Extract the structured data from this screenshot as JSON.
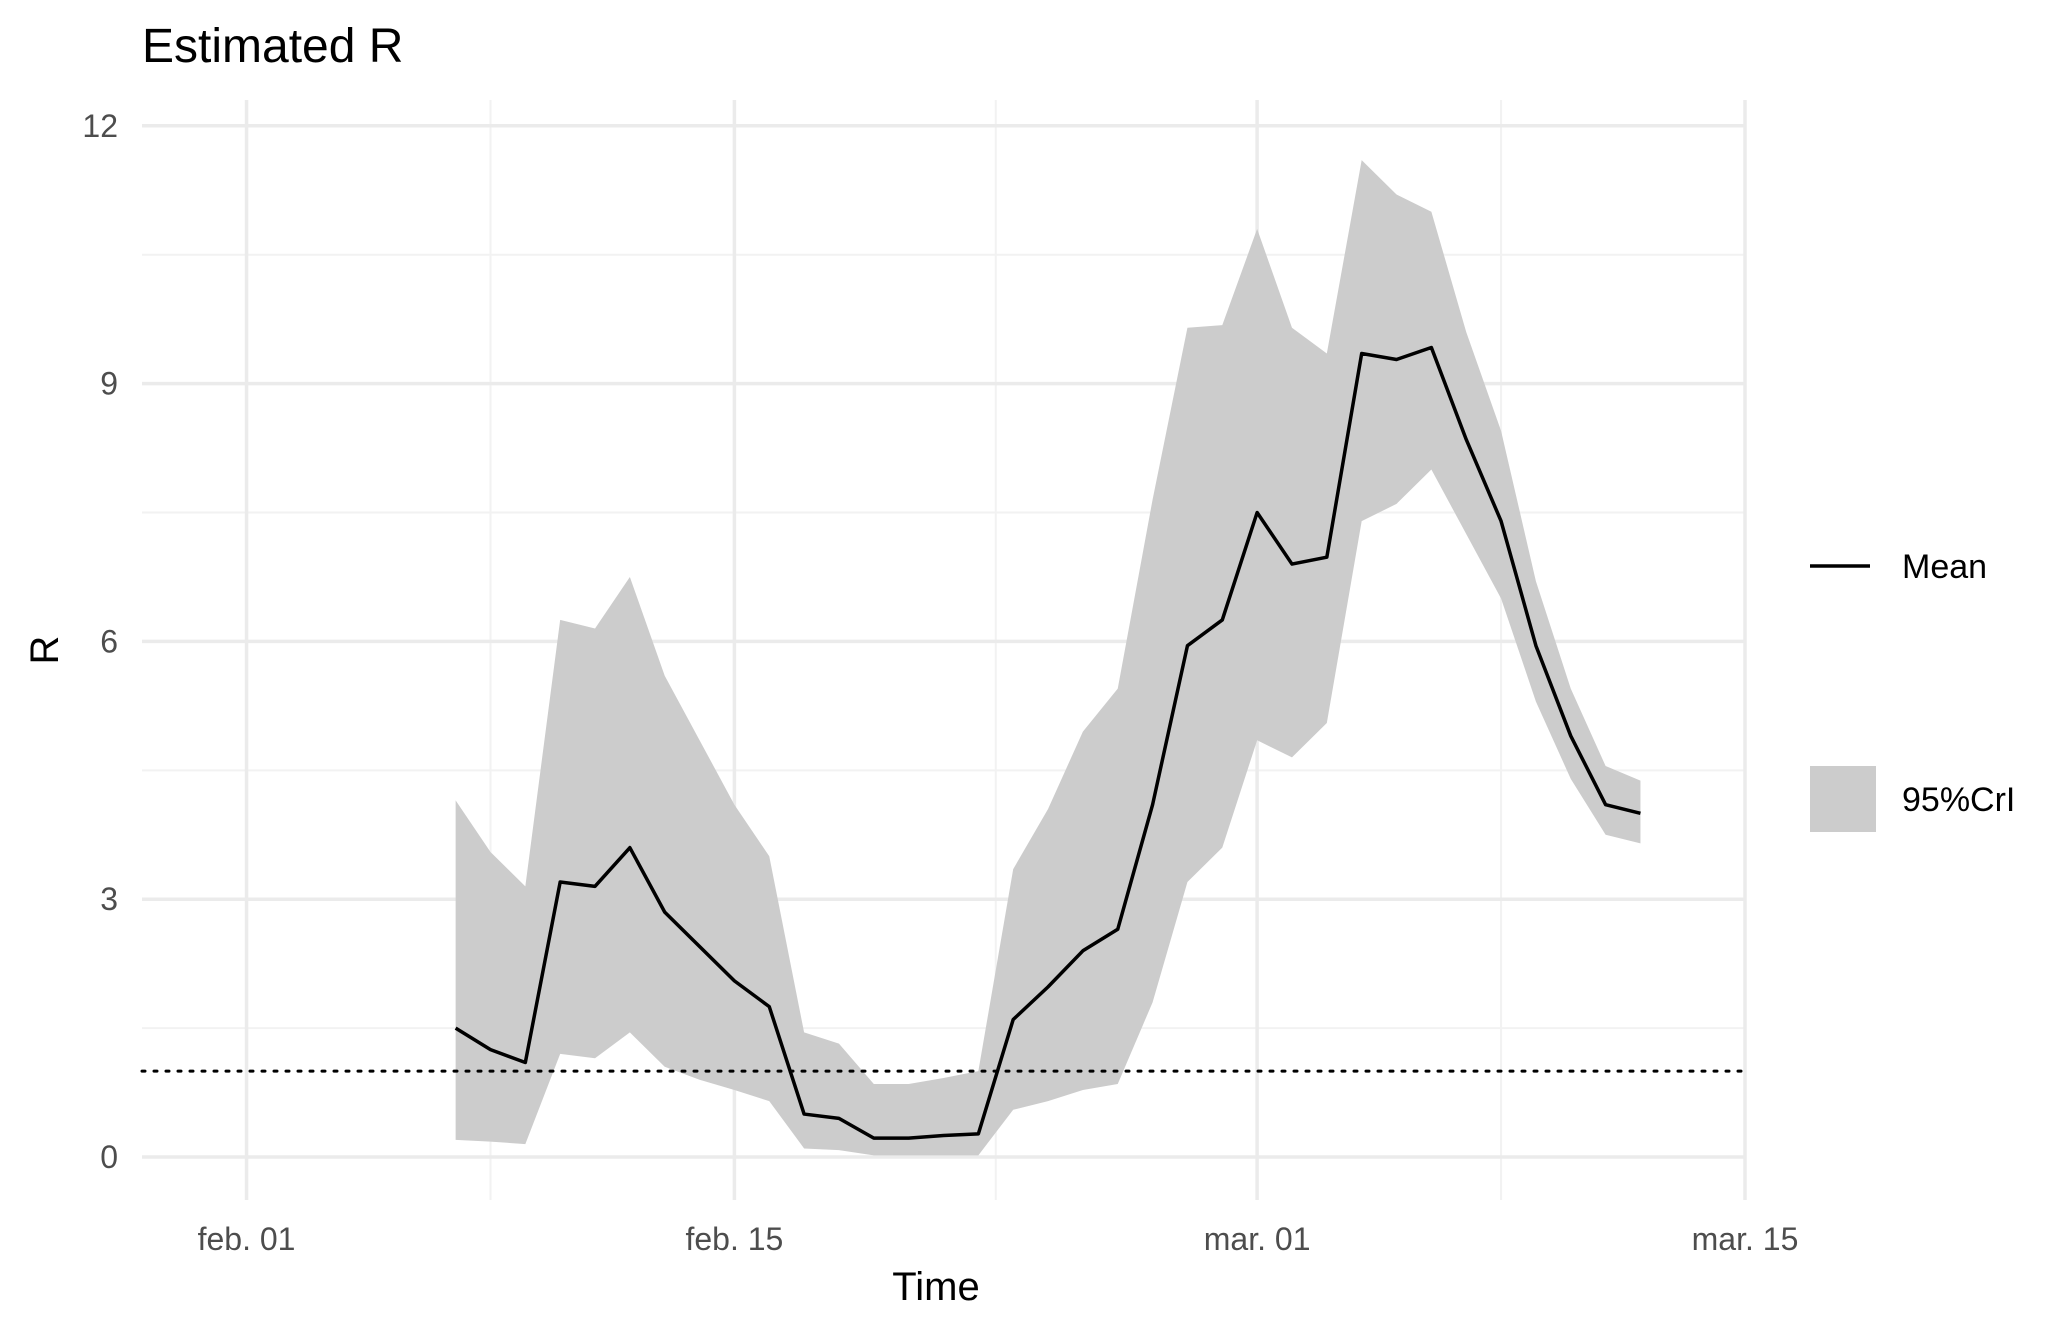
{
  "chart_data": {
    "type": "line",
    "title": "Estimated R",
    "xlabel": "Time",
    "ylabel": "R",
    "x_tick_labels": [
      "feb. 01",
      "feb. 15",
      "mar. 01",
      "mar. 15"
    ],
    "x_tick_dates": [
      "2020-02-01",
      "2020-02-15",
      "2020-03-01",
      "2020-03-15"
    ],
    "x_range": [
      "2020-01-29",
      "2020-03-15"
    ],
    "y_ticks": [
      0,
      3,
      6,
      9,
      12
    ],
    "ylim": [
      -0.5,
      12.3
    ],
    "grid": true,
    "reference_line": {
      "y": 1,
      "style": "dotted"
    },
    "legend": {
      "placement": "right",
      "items": [
        {
          "label": "Mean",
          "kind": "line",
          "color": "#000000"
        },
        {
          "label": "95%CrI",
          "kind": "fill",
          "color": "#cccccc"
        }
      ]
    },
    "series": [
      {
        "name": "Mean",
        "x": [
          "2020-02-07",
          "2020-02-08",
          "2020-02-09",
          "2020-02-10",
          "2020-02-11",
          "2020-02-12",
          "2020-02-13",
          "2020-02-14",
          "2020-02-15",
          "2020-02-16",
          "2020-02-17",
          "2020-02-18",
          "2020-02-19",
          "2020-02-20",
          "2020-02-21",
          "2020-02-22",
          "2020-02-23",
          "2020-02-24",
          "2020-02-25",
          "2020-02-26",
          "2020-02-27",
          "2020-02-28",
          "2020-02-29",
          "2020-03-01",
          "2020-03-02",
          "2020-03-03",
          "2020-03-04",
          "2020-03-05",
          "2020-03-06",
          "2020-03-07",
          "2020-03-08",
          "2020-03-09",
          "2020-03-10",
          "2020-03-11",
          "2020-03-12"
        ],
        "values": [
          1.5,
          1.25,
          1.1,
          3.2,
          3.15,
          3.6,
          2.85,
          2.45,
          2.05,
          1.75,
          0.5,
          0.45,
          0.22,
          0.22,
          0.25,
          0.27,
          1.6,
          1.98,
          2.4,
          2.65,
          4.1,
          5.95,
          6.25,
          7.5,
          6.9,
          6.98,
          9.35,
          9.28,
          9.42,
          8.35,
          7.4,
          5.95,
          4.9,
          4.1,
          4.0
        ]
      },
      {
        "name": "95%CrI",
        "x": [
          "2020-02-07",
          "2020-02-08",
          "2020-02-09",
          "2020-02-10",
          "2020-02-11",
          "2020-02-12",
          "2020-02-13",
          "2020-02-14",
          "2020-02-15",
          "2020-02-16",
          "2020-02-17",
          "2020-02-18",
          "2020-02-19",
          "2020-02-20",
          "2020-02-21",
          "2020-02-22",
          "2020-02-23",
          "2020-02-24",
          "2020-02-25",
          "2020-02-26",
          "2020-02-27",
          "2020-02-28",
          "2020-02-29",
          "2020-03-01",
          "2020-03-02",
          "2020-03-03",
          "2020-03-04",
          "2020-03-05",
          "2020-03-06",
          "2020-03-07",
          "2020-03-08",
          "2020-03-09",
          "2020-03-10",
          "2020-03-11",
          "2020-03-12"
        ],
        "lower": [
          0.2,
          0.18,
          0.15,
          1.2,
          1.15,
          1.45,
          1.05,
          0.9,
          0.78,
          0.65,
          0.1,
          0.08,
          0.02,
          0.02,
          0.02,
          0.02,
          0.55,
          0.65,
          0.78,
          0.85,
          1.8,
          3.2,
          3.6,
          4.85,
          4.65,
          5.05,
          7.4,
          7.6,
          8.0,
          7.25,
          6.5,
          5.3,
          4.4,
          3.75,
          3.65
        ],
        "upper": [
          4.15,
          3.55,
          3.15,
          6.25,
          6.15,
          6.75,
          5.6,
          4.85,
          4.1,
          3.5,
          1.45,
          1.32,
          0.85,
          0.85,
          0.92,
          1.0,
          3.35,
          4.05,
          4.95,
          5.45,
          7.65,
          9.65,
          9.68,
          10.8,
          9.65,
          9.35,
          11.6,
          11.2,
          11.0,
          9.6,
          8.45,
          6.7,
          5.45,
          4.55,
          4.38
        ]
      }
    ]
  }
}
